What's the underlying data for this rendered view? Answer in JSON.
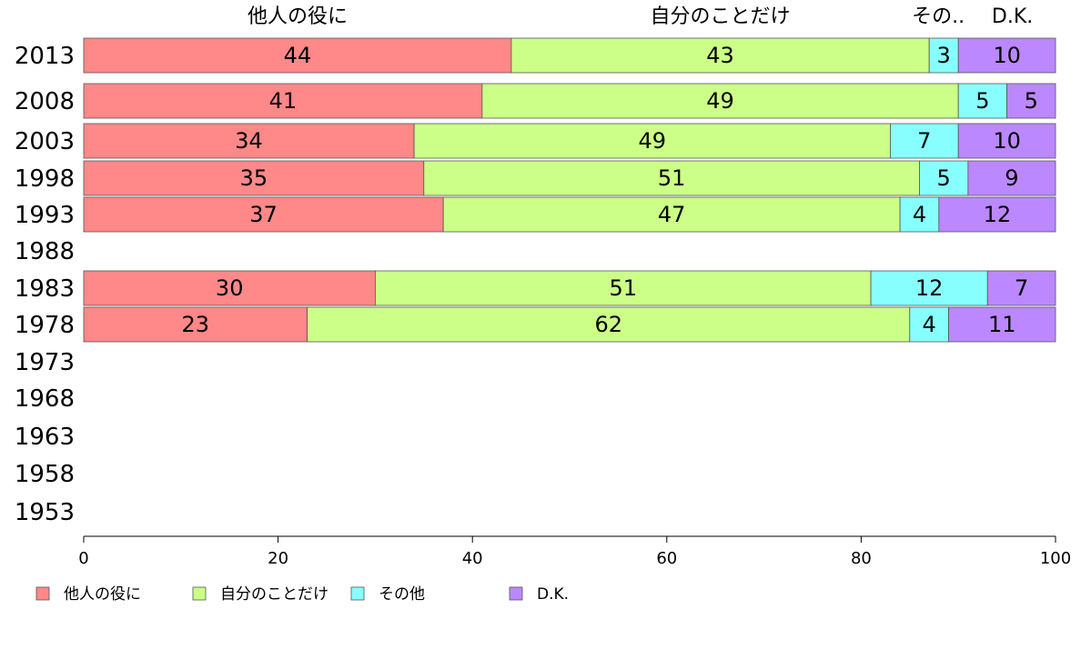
{
  "chart_data": {
    "type": "bar",
    "orientation": "horizontal",
    "stacked": true,
    "categories": [
      "2013",
      "2008",
      "2003",
      "1998",
      "1993",
      "1988",
      "1983",
      "1978",
      "1973",
      "1968",
      "1963",
      "1958",
      "1953"
    ],
    "series": [
      {
        "name": "他人の役に",
        "color": "#ff8888",
        "values": [
          44,
          41,
          34,
          35,
          37,
          null,
          30,
          23,
          null,
          null,
          null,
          null,
          null
        ]
      },
      {
        "name": "自分のことだけ",
        "color": "#ccff88",
        "values": [
          43,
          49,
          49,
          51,
          47,
          null,
          51,
          62,
          null,
          null,
          null,
          null,
          null
        ]
      },
      {
        "name": "その他",
        "color": "#88ffff",
        "values": [
          3,
          5,
          7,
          5,
          4,
          null,
          12,
          4,
          null,
          null,
          null,
          null,
          null
        ]
      },
      {
        "name": "D.K.",
        "color": "#bb88ff",
        "values": [
          10,
          5,
          10,
          9,
          12,
          null,
          7,
          11,
          null,
          null,
          null,
          null,
          null
        ]
      }
    ],
    "top_labels": [
      "他人の役に",
      "自分のことだけ",
      "その..",
      "D.K."
    ],
    "xlim": [
      0,
      100
    ],
    "xticks": [
      "0",
      "20",
      "40",
      "60",
      "80",
      "100"
    ],
    "grid": false,
    "legend_position": "bottom"
  }
}
